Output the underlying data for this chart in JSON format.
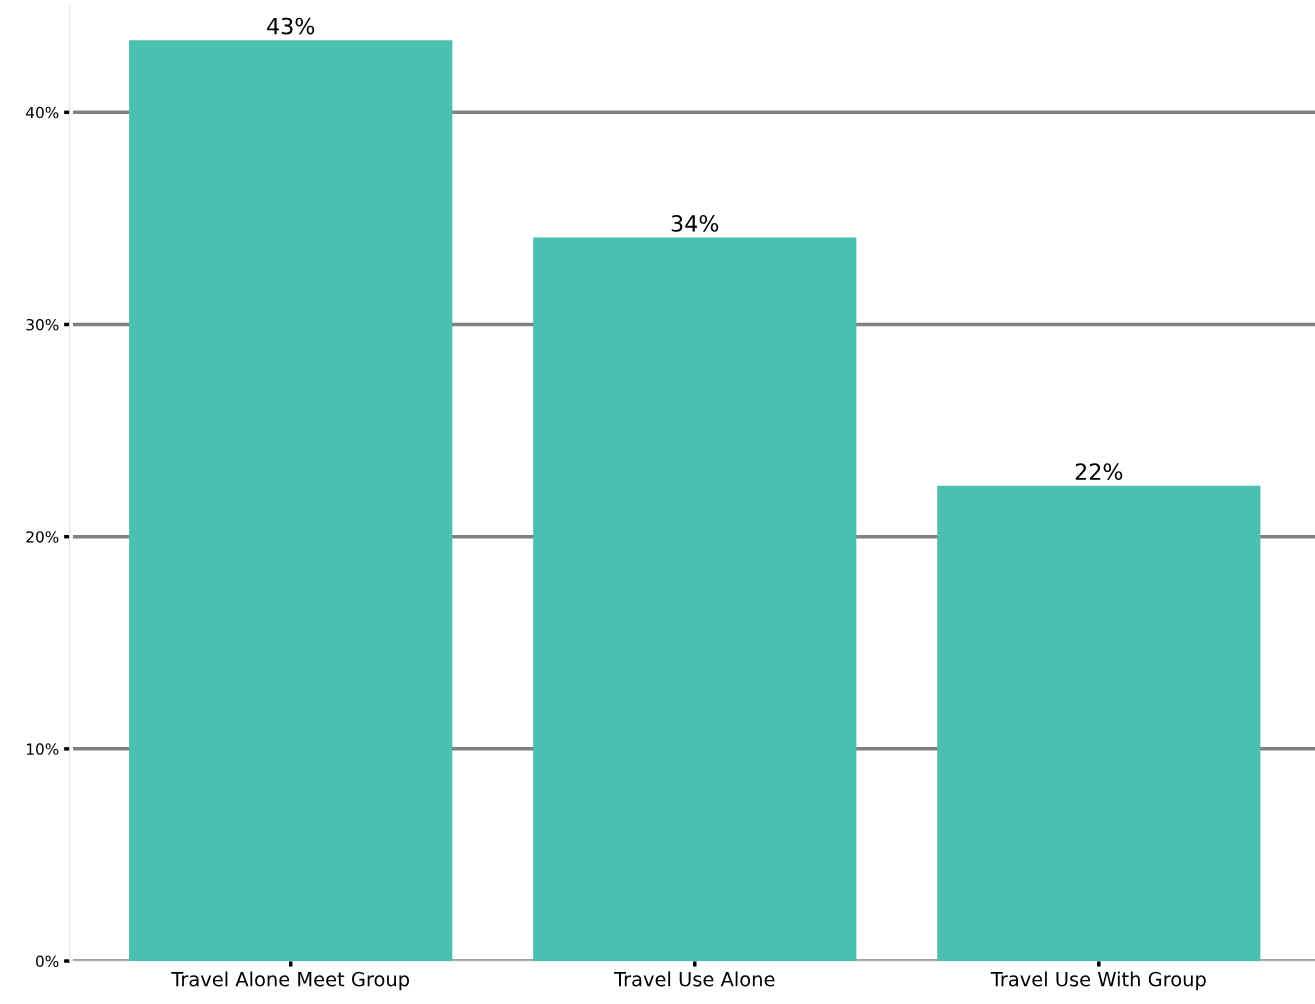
{
  "chart_data": {
    "type": "bar",
    "categories": [
      "Travel Alone Meet Group",
      "Travel Use Alone",
      "Travel Use With Group"
    ],
    "values": [
      43.4,
      34.1,
      22.4
    ],
    "ylim": [
      0,
      45
    ],
    "value_labels": [
      "43%",
      "34%",
      "22%"
    ],
    "color": "#4cc0b0",
    "yticks": [
      {
        "value": 0,
        "label": "0%"
      },
      {
        "value": 10,
        "label": "10%"
      },
      {
        "value": 20,
        "label": "20%"
      },
      {
        "value": 30,
        "label": "30%"
      },
      {
        "value": 40,
        "label": "40%"
      }
    ],
    "grid": "y"
  }
}
